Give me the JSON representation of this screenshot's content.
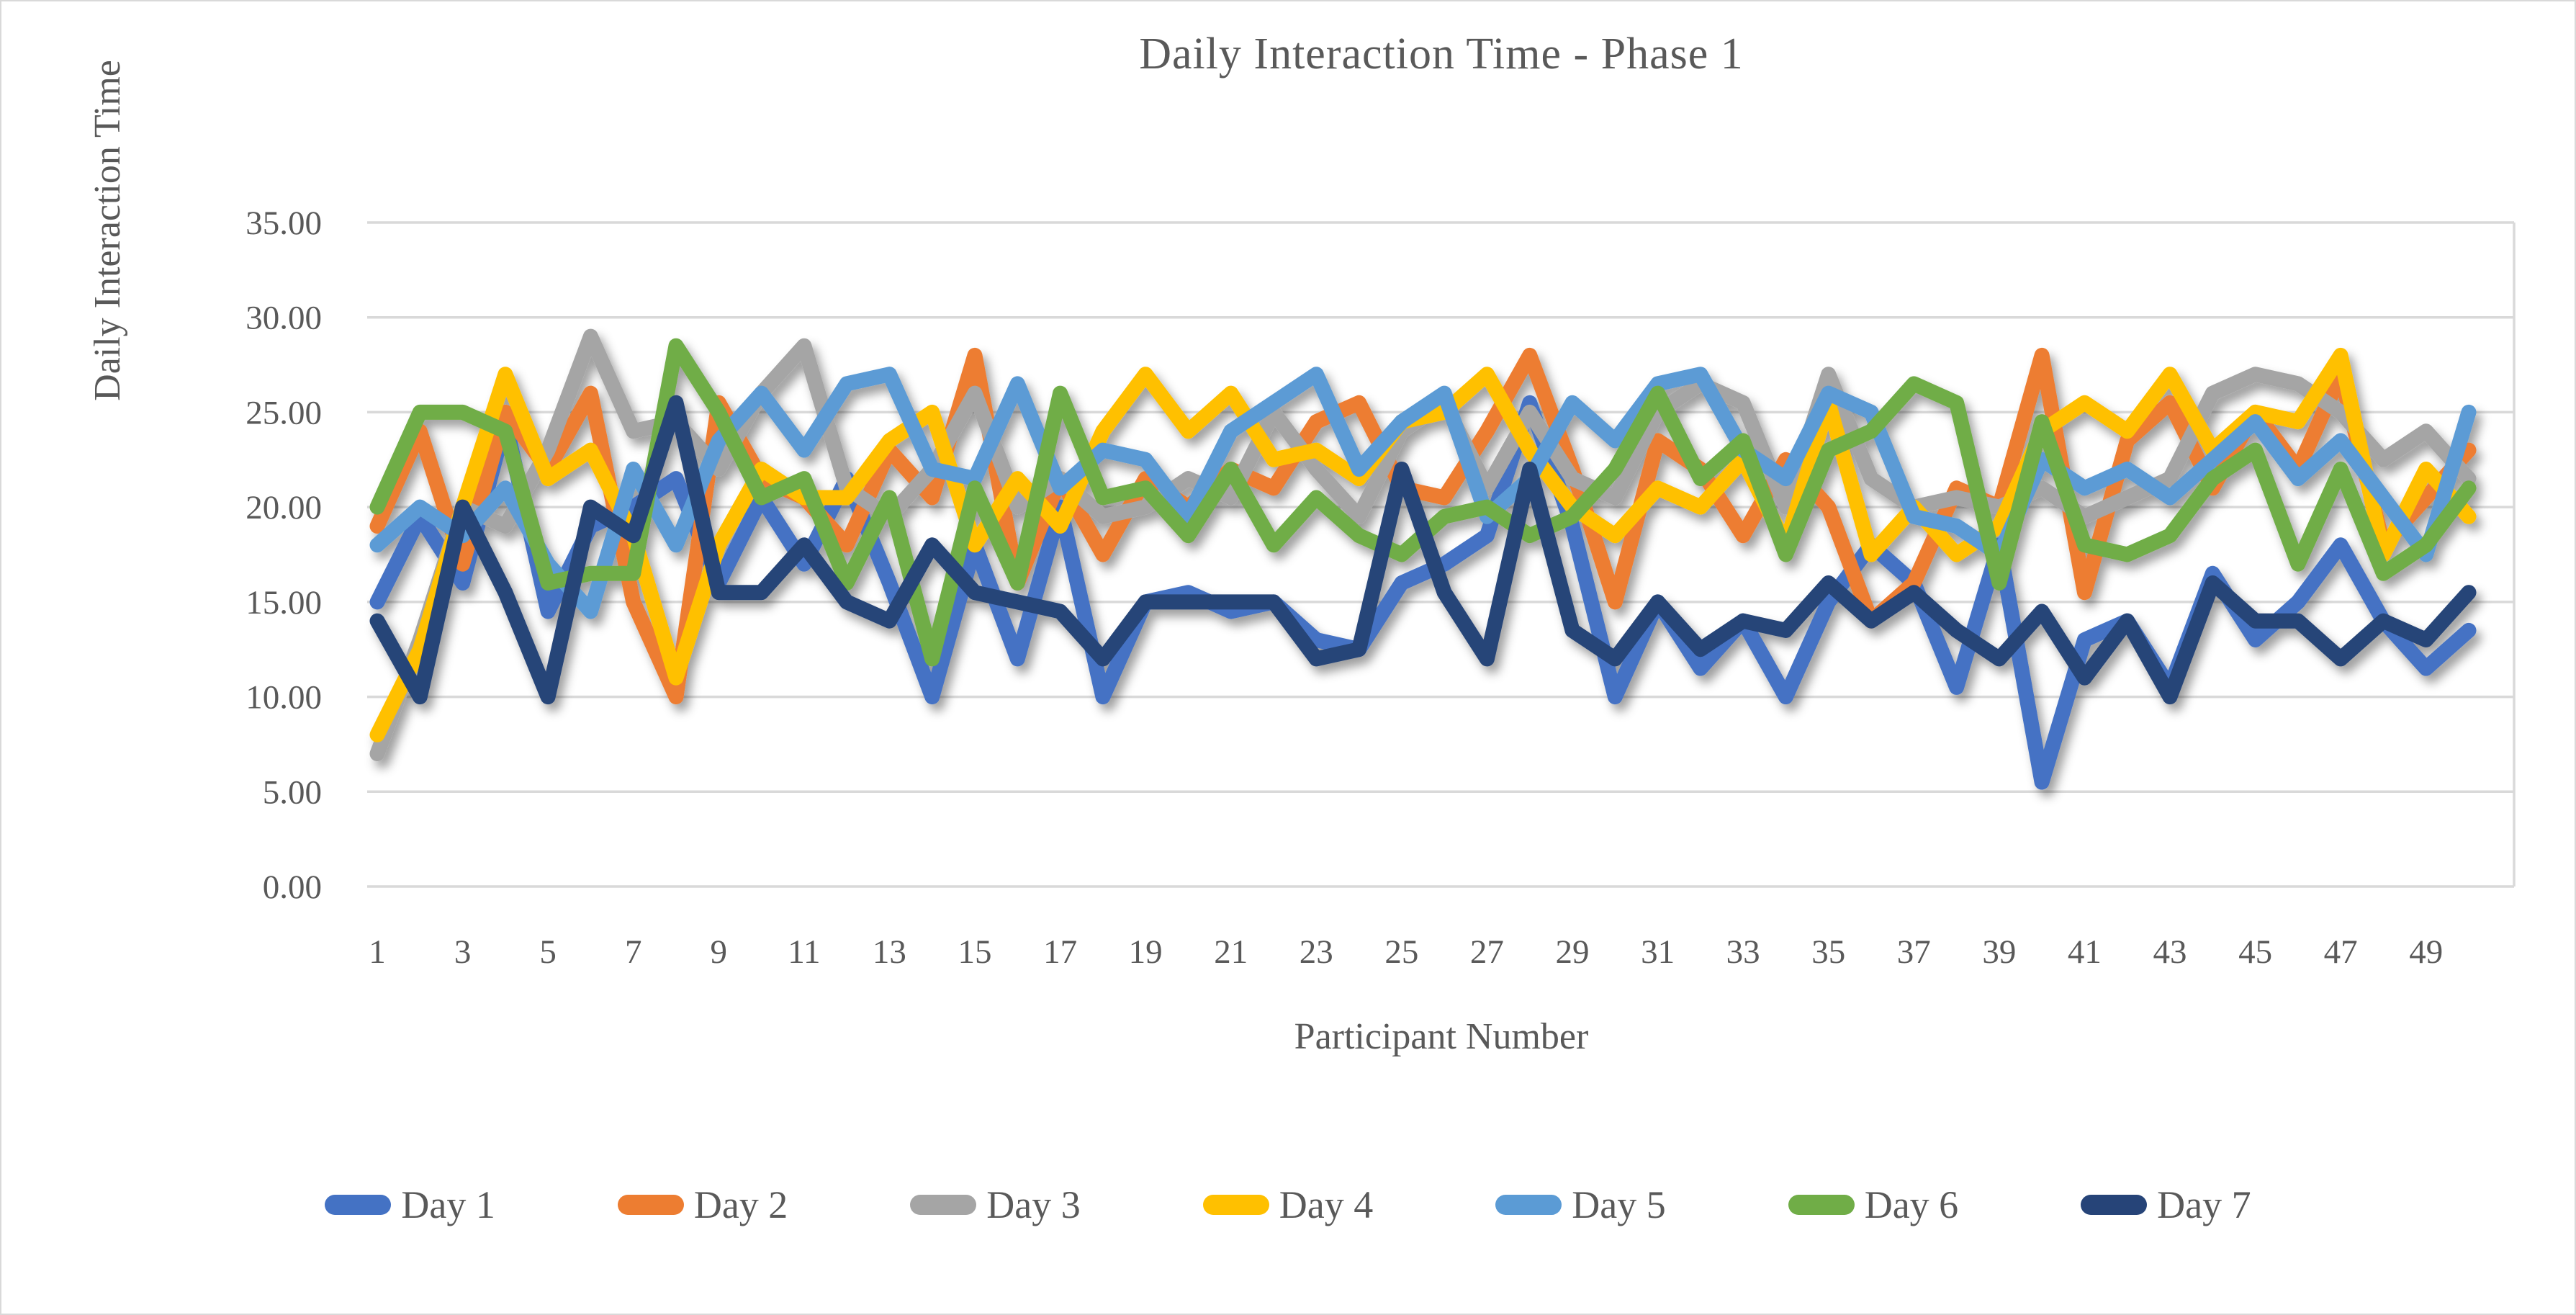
{
  "chart": {
    "title": "Daily Interaction Time - Phase 1",
    "xlabel": "Participant Number",
    "ylabel": "Daily Interaction Time"
  },
  "chart_data": {
    "type": "line",
    "title": "Daily Interaction Time - Phase 1",
    "xlabel": "Participant Number",
    "ylabel": "Daily Interaction Time",
    "ylim": [
      0,
      35
    ],
    "grid": "horizontal",
    "legend_position": "bottom",
    "y_ticks": [
      "35.00",
      "30.00",
      "25.00",
      "20.00",
      "15.00",
      "10.00",
      "5.00",
      "0.00"
    ],
    "y_tick_values": [
      35,
      30,
      25,
      20,
      15,
      10,
      5,
      0
    ],
    "x_tick_labels": [
      1,
      3,
      5,
      7,
      9,
      11,
      13,
      15,
      17,
      19,
      21,
      23,
      25,
      27,
      29,
      31,
      33,
      35,
      37,
      39,
      41,
      43,
      45,
      47,
      49
    ],
    "x": [
      1,
      2,
      3,
      4,
      5,
      6,
      7,
      8,
      9,
      10,
      11,
      12,
      13,
      14,
      15,
      16,
      17,
      18,
      19,
      20,
      21,
      22,
      23,
      24,
      25,
      26,
      27,
      28,
      29,
      30,
      31,
      32,
      33,
      34,
      35,
      36,
      37,
      38,
      39,
      40,
      41,
      42,
      43,
      44,
      45,
      46,
      47,
      48,
      49,
      50
    ],
    "text_color": "#595959",
    "gridline_color": "#d9d9d9",
    "series": [
      {
        "name": "Day 1",
        "color": "#4472C4",
        "values": [
          15,
          19.5,
          16,
          24.5,
          14.5,
          19,
          20,
          21.5,
          16,
          20.5,
          17,
          21.5,
          16,
          10,
          18,
          12,
          20,
          10,
          15,
          15.5,
          14.5,
          15,
          13,
          12.5,
          16,
          17,
          18.5,
          25.5,
          19,
          10,
          15,
          11.5,
          14,
          10,
          15,
          18,
          16,
          10.5,
          18,
          5.5,
          13,
          14,
          10.5,
          16.5,
          13,
          15,
          18,
          14,
          11.5,
          13.5
        ]
      },
      {
        "name": "Day 2",
        "color": "#ED7D31",
        "values": [
          19,
          24,
          17,
          25,
          22,
          26,
          15,
          10,
          25.5,
          21.5,
          20.5,
          18,
          23,
          20.5,
          28,
          16,
          21.5,
          17.5,
          21.5,
          20,
          22,
          21,
          24.5,
          25.5,
          21,
          20.5,
          24,
          28,
          22,
          15,
          23.5,
          22,
          18.5,
          22.5,
          20,
          14,
          16,
          21,
          20,
          28,
          15.5,
          23.5,
          25.5,
          21,
          25,
          22,
          27,
          18,
          20.5,
          23
        ]
      },
      {
        "name": "Day 3",
        "color": "#A5A5A5",
        "values": [
          7,
          13,
          20,
          19,
          23,
          29,
          24,
          24.5,
          22,
          26,
          28.5,
          21,
          19.5,
          22,
          26,
          20,
          21.5,
          19.5,
          20,
          21.5,
          20.5,
          25,
          22,
          19.5,
          24,
          25.5,
          21,
          25,
          21.5,
          20.5,
          25,
          26.5,
          25.5,
          20,
          27,
          21.5,
          20,
          20.5,
          20,
          21,
          19.5,
          20.5,
          21.5,
          26,
          27,
          26.5,
          25,
          22.5,
          24,
          21.5
        ]
      },
      {
        "name": "Day 4",
        "color": "#FFC000",
        "values": [
          8,
          12.5,
          20,
          27,
          21.5,
          23,
          18.5,
          11,
          18,
          22,
          20.5,
          20.5,
          23.5,
          25,
          18,
          21.5,
          19,
          24,
          27,
          24,
          26,
          22.5,
          23,
          21.5,
          24.5,
          25,
          27,
          23,
          20,
          18.5,
          21,
          20,
          22.5,
          18,
          25.5,
          17.5,
          20,
          17.5,
          19,
          24,
          25.5,
          24,
          27,
          23,
          25,
          24.5,
          28,
          17.5,
          22,
          19.5
        ]
      },
      {
        "name": "Day 5",
        "color": "#5B9BD5",
        "values": [
          18,
          20,
          18.5,
          21,
          17,
          14.5,
          22,
          18,
          23.5,
          26,
          23,
          26.5,
          27,
          22,
          21.5,
          26.5,
          21,
          23,
          22.5,
          19.5,
          24,
          25.5,
          27,
          22,
          24.5,
          26,
          19.5,
          21.5,
          25.5,
          23.5,
          26.5,
          27,
          23,
          21.5,
          26,
          25,
          19.5,
          19,
          17.5,
          22.5,
          21,
          22,
          20.5,
          22.5,
          24.5,
          21.5,
          23.5,
          20.5,
          17.5,
          25
        ]
      },
      {
        "name": "Day 6",
        "color": "#70AD47",
        "values": [
          20,
          25,
          25,
          24,
          16,
          16.5,
          16.5,
          28.5,
          25,
          20.5,
          21.5,
          16,
          20.5,
          12,
          21,
          16,
          26,
          20.5,
          21,
          18.5,
          22,
          18,
          20.5,
          18.5,
          17.5,
          19.5,
          20,
          18.5,
          19.5,
          22,
          26,
          21.5,
          23.5,
          17.5,
          23,
          24,
          26.5,
          25.5,
          16,
          24.5,
          18,
          17.5,
          18.5,
          21.5,
          23,
          17,
          22,
          16.5,
          18,
          21
        ]
      },
      {
        "name": "Day 7",
        "color": "#264478",
        "values": [
          14,
          10,
          20,
          15.5,
          10,
          20,
          18.5,
          25.5,
          15.5,
          15.5,
          18,
          15,
          14,
          18,
          15.5,
          15,
          14.5,
          12,
          15,
          15,
          15,
          15,
          12,
          12.5,
          22,
          15.5,
          12,
          22,
          13.5,
          12,
          15,
          12.5,
          14,
          13.5,
          16,
          14,
          15.5,
          13.5,
          12,
          14.5,
          11,
          14,
          10,
          16,
          14,
          14,
          12,
          14,
          13,
          15.5
        ]
      }
    ]
  }
}
